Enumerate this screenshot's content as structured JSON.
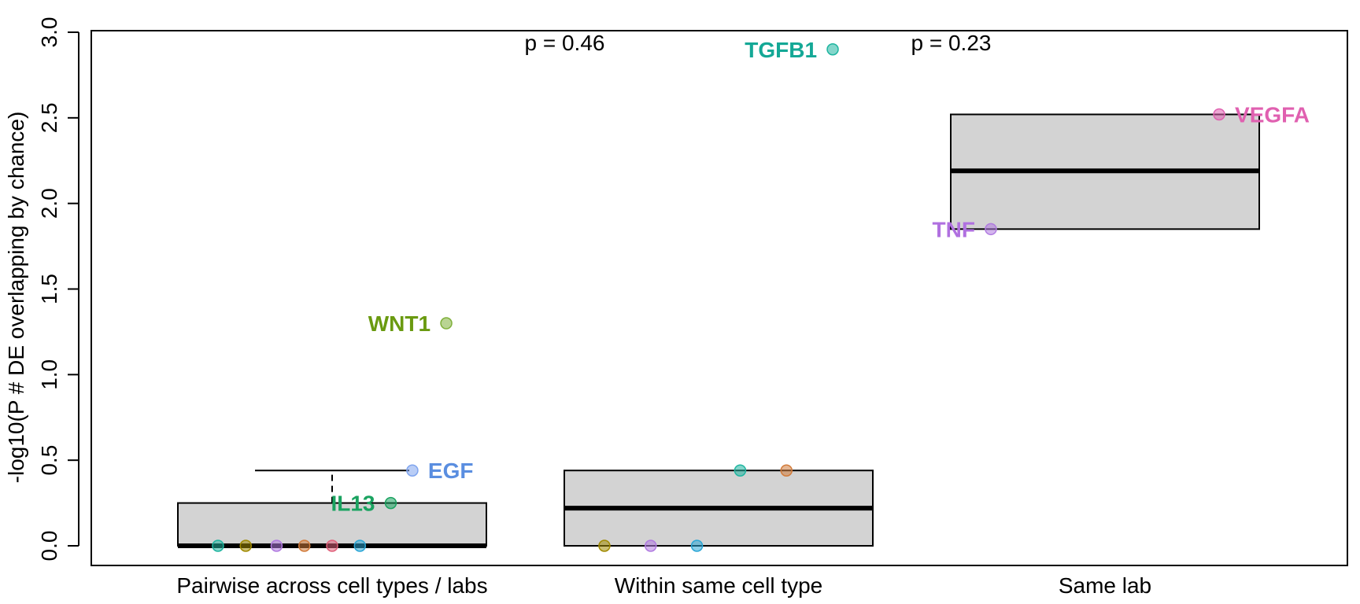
{
  "chart_data": {
    "type": "box",
    "ylabel": "-log10(P # DE overlapping by chance)",
    "ylim": [
      0,
      3.0
    ],
    "yticks": [
      "0.0",
      "0.5",
      "1.0",
      "1.5",
      "2.0",
      "2.5",
      "3.0"
    ],
    "categories": [
      "Pairwise across cell types / labs",
      "Within same cell type",
      "Same lab"
    ],
    "boxes": [
      {
        "q1": 0.0,
        "median": 0.0,
        "q3": 0.25,
        "whisker_low": 0.0,
        "whisker_high": 0.44
      },
      {
        "q1": 0.0,
        "median": 0.22,
        "q3": 0.44,
        "whisker_low": 0.0,
        "whisker_high": 0.44
      },
      {
        "q1": 1.85,
        "median": 2.19,
        "q3": 2.52,
        "whisker_low": 1.85,
        "whisker_high": 2.52
      }
    ],
    "points": [
      {
        "group": 0,
        "offset": -0.37,
        "y": 0.0,
        "color": "#1fb5a0"
      },
      {
        "group": 0,
        "offset": -0.28,
        "y": 0.0,
        "color": "#a08a00"
      },
      {
        "group": 0,
        "offset": -0.18,
        "y": 0.0,
        "color": "#b07ae0"
      },
      {
        "group": 0,
        "offset": -0.09,
        "y": 0.0,
        "color": "#d27b3a"
      },
      {
        "group": 0,
        "offset": 0.0,
        "y": 0.0,
        "color": "#e0607a"
      },
      {
        "group": 0,
        "offset": 0.09,
        "y": 0.0,
        "color": "#2aa6d6"
      },
      {
        "group": 0,
        "offset": 0.19,
        "y": 0.25,
        "color": "#1aa360",
        "label": "IL13",
        "label_side": "left"
      },
      {
        "group": 0,
        "offset": 0.26,
        "y": 0.44,
        "color": "#7fa4ee",
        "label": "EGF",
        "label_side": "right"
      },
      {
        "group": 0,
        "offset": 0.37,
        "y": 1.3,
        "color": "#7fb03a",
        "label": "WNT1",
        "label_side": "left"
      },
      {
        "group": 1,
        "offset": -0.37,
        "y": 0.0,
        "color": "#a08a00"
      },
      {
        "group": 1,
        "offset": -0.22,
        "y": 0.0,
        "color": "#b07ae0"
      },
      {
        "group": 1,
        "offset": -0.07,
        "y": 0.0,
        "color": "#2aa6d6"
      },
      {
        "group": 1,
        "offset": 0.07,
        "y": 0.44,
        "color": "#1fb5a0"
      },
      {
        "group": 1,
        "offset": 0.22,
        "y": 0.44,
        "color": "#d27b3a"
      },
      {
        "group": 1,
        "offset": 0.37,
        "y": 2.9,
        "color": "#1fb5a0",
        "label": "TGFB1",
        "label_side": "left"
      },
      {
        "group": 2,
        "offset": -0.37,
        "y": 1.85,
        "color": "#b07ae0",
        "label": "TNF",
        "label_side": "left"
      },
      {
        "group": 2,
        "offset": 0.37,
        "y": 2.52,
        "color": "#e060b0",
        "label": "VEGFA",
        "label_side": "right"
      }
    ],
    "label_colors": {
      "IL13": "#1aa360",
      "EGF": "#5a8ee0",
      "WNT1": "#6a9a10",
      "TGFB1": "#14a896",
      "TNF": "#b070e0",
      "VEGFA": "#e060b0"
    },
    "annotations": [
      {
        "text": "p = 0.46",
        "between": [
          0,
          1
        ]
      },
      {
        "text": "p = 0.23",
        "between": [
          1,
          2
        ]
      }
    ]
  }
}
